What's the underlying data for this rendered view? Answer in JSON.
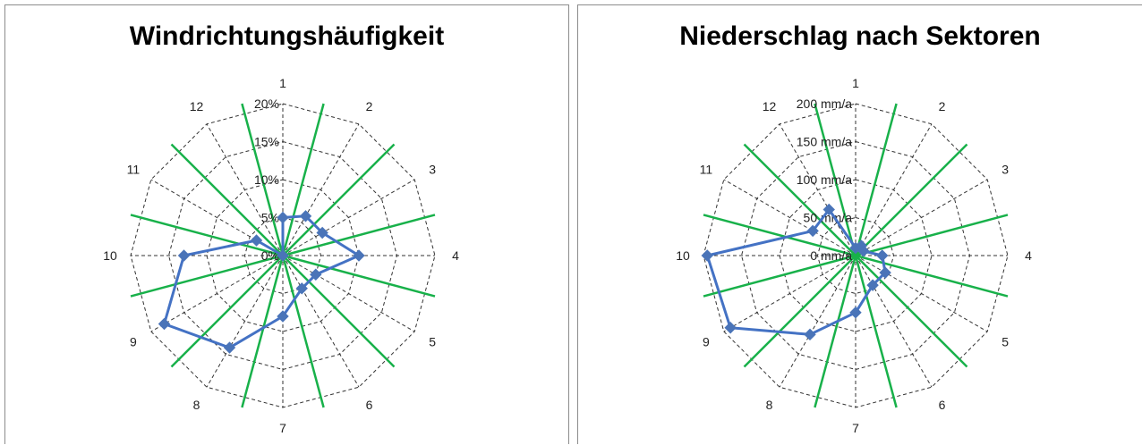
{
  "chart_data": [
    {
      "type": "radar",
      "title": "Windrichtungshäufigkeit",
      "categories": [
        "1",
        "2",
        "3",
        "4",
        "5",
        "6",
        "7",
        "8",
        "9",
        "10",
        "11",
        "12"
      ],
      "radial_ticks": [
        "0%",
        "5%",
        "10%",
        "15%",
        "20%"
      ],
      "rlim": [
        0,
        20
      ],
      "series": [
        {
          "values": [
            5,
            6,
            6,
            10,
            5,
            5,
            8,
            14,
            18,
            13,
            4,
            0
          ]
        }
      ],
      "highlight_directions_deg": [
        -15,
        15,
        45,
        75,
        105,
        135,
        165,
        195,
        225,
        255,
        285,
        315
      ],
      "grid": true,
      "legend": "none"
    },
    {
      "type": "radar",
      "title": "Niederschlag nach Sektoren",
      "categories": [
        "1",
        "2",
        "3",
        "4",
        "5",
        "6",
        "7",
        "8",
        "9",
        "10",
        "11",
        "12"
      ],
      "radial_ticks": [
        "0 mm/a",
        "50 mm/a",
        "100 mm/a",
        "150 mm/a",
        "200 mm/a"
      ],
      "rlim": [
        0,
        200
      ],
      "series": [
        {
          "values": [
            10,
            15,
            12,
            35,
            45,
            45,
            75,
            120,
            190,
            195,
            65,
            70
          ]
        }
      ],
      "highlight_directions_deg": [
        -15,
        15,
        45,
        75,
        105,
        135,
        165,
        195,
        225,
        255,
        285,
        315
      ],
      "grid": true,
      "legend": "none"
    }
  ],
  "colors": {
    "series": "#4472c4",
    "marker": "#4a74b8",
    "highlight_lines": "#18b14a",
    "grid": "#333333"
  }
}
